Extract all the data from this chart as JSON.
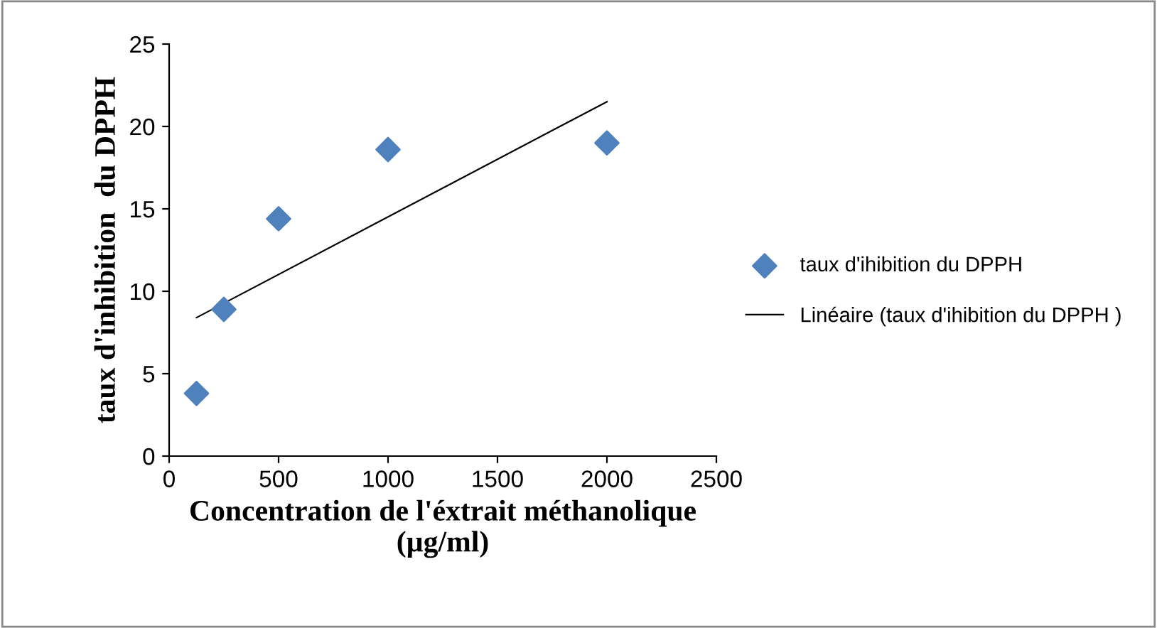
{
  "chart_data": {
    "type": "scatter",
    "xlabel": "Concentration de l'éxtrait méthanolique\n(µg/ml)",
    "ylabel": "taux d'inhibition  du DPPH",
    "x": [
      125,
      250,
      500,
      1000,
      2000
    ],
    "series": [
      {
        "name": "taux d'ihibition du DPPH",
        "color": "#4f81bd",
        "marker": "diamond",
        "values": [
          3.8,
          8.9,
          14.4,
          18.6,
          19.0
        ]
      },
      {
        "name": "Linéaire (taux d'ihibition du DPPH )",
        "type": "line",
        "color": "#000000",
        "marker": "none",
        "line_style": "solid",
        "x": [
          125,
          2000
        ],
        "values": [
          8.4,
          21.5
        ]
      }
    ],
    "xlim": [
      0,
      2500
    ],
    "xticks": [
      0,
      500,
      1000,
      1500,
      2000,
      2500
    ],
    "ylim": [
      0,
      25
    ],
    "yticks": [
      0,
      5,
      10,
      15,
      20,
      25
    ],
    "grid": false,
    "legend": "right"
  }
}
